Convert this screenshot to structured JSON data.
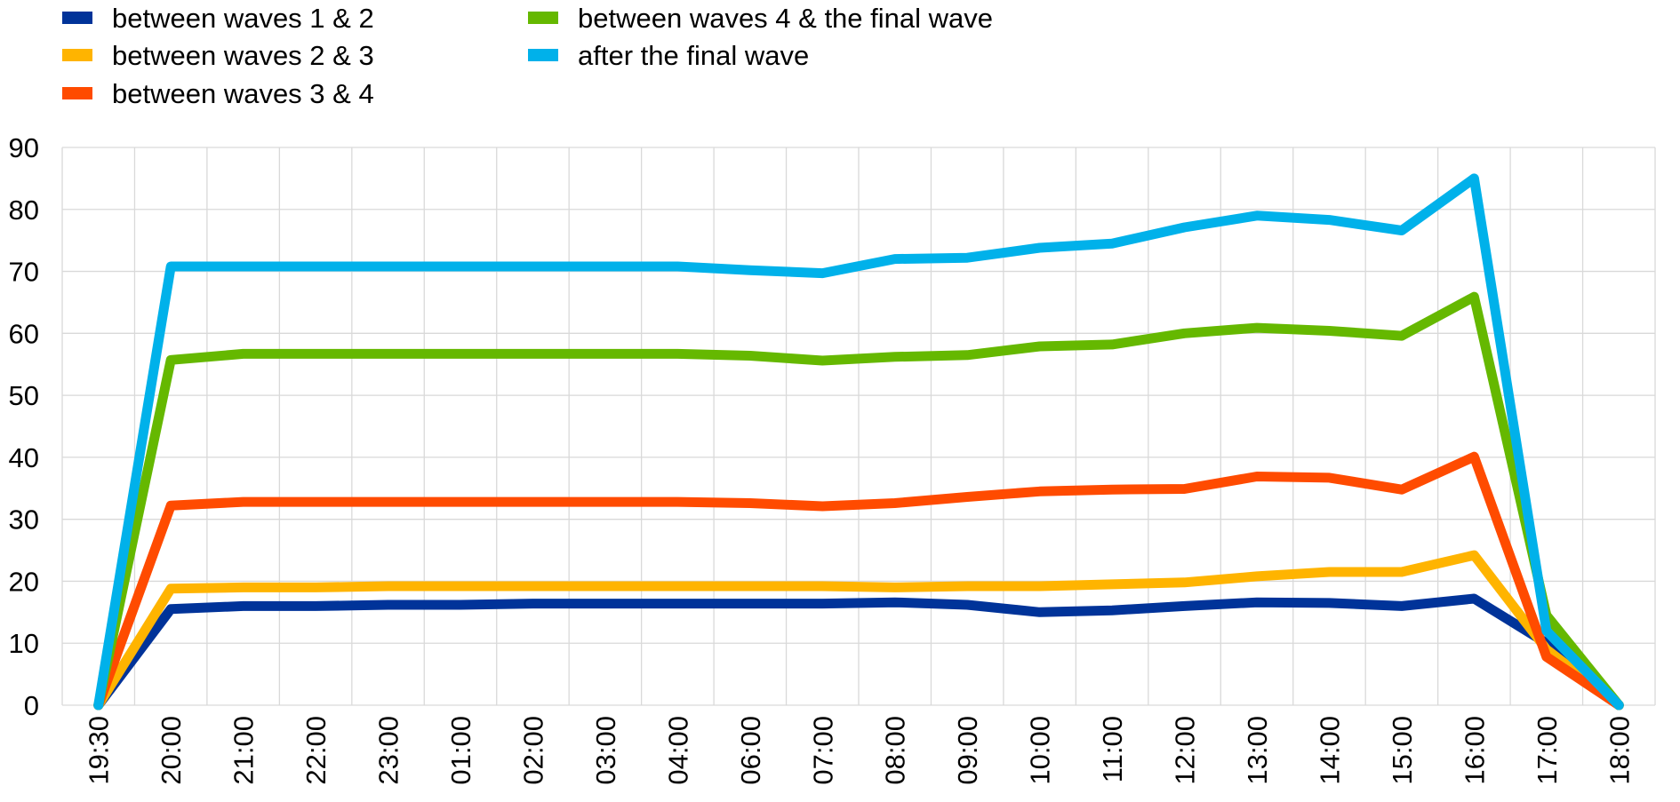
{
  "chart_data": {
    "type": "line",
    "title": "",
    "xlabel": "",
    "ylabel": "",
    "ylim": [
      0,
      90
    ],
    "yticks": [
      0,
      10,
      20,
      30,
      40,
      50,
      60,
      70,
      80,
      90
    ],
    "grid": true,
    "legend_position": "top-left",
    "categories": [
      "19:30",
      "20:00",
      "21:00",
      "22:00",
      "23:00",
      "01:00",
      "02:00",
      "03:00",
      "04:00",
      "06:00",
      "07:00",
      "08:00",
      "09:00",
      "10:00",
      "11:00",
      "12:00",
      "13:00",
      "14:00",
      "15:00",
      "16:00",
      "17:00",
      "18:00"
    ],
    "series": [
      {
        "name": "between waves 1 & 2",
        "color": "#003399",
        "values": [
          0,
          15.5,
          16,
          16,
          16.2,
          16.2,
          16.4,
          16.4,
          16.4,
          16.4,
          16.4,
          16.6,
          16.2,
          15,
          15.3,
          16,
          16.6,
          16.5,
          16,
          17.2,
          10,
          0
        ]
      },
      {
        "name": "between waves 2 & 3",
        "color": "#ffb400",
        "values": [
          0,
          18.8,
          19,
          19,
          19.2,
          19.2,
          19.2,
          19.2,
          19.2,
          19.2,
          19.2,
          19,
          19.2,
          19.2,
          19.5,
          19.8,
          20.8,
          21.5,
          21.5,
          24.2,
          9,
          0
        ]
      },
      {
        "name": "between waves 3 & 4",
        "color": "#ff4b00",
        "values": [
          0,
          32.2,
          32.8,
          32.8,
          32.8,
          32.8,
          32.8,
          32.8,
          32.8,
          32.6,
          32.1,
          32.6,
          33.6,
          34.5,
          34.8,
          34.9,
          36.9,
          36.7,
          34.8,
          40.1,
          7.8,
          0
        ]
      },
      {
        "name": "between waves 4 & the final wave",
        "color": "#65b800",
        "values": [
          0,
          55.7,
          56.7,
          56.7,
          56.7,
          56.7,
          56.7,
          56.7,
          56.7,
          56.4,
          55.6,
          56.2,
          56.5,
          57.9,
          58.2,
          60,
          60.9,
          60.4,
          59.6,
          65.9,
          14.5,
          0
        ]
      },
      {
        "name": "after the final wave",
        "color": "#00b1ea",
        "values": [
          0,
          70.8,
          70.8,
          70.8,
          70.8,
          70.8,
          70.8,
          70.8,
          70.8,
          70.2,
          69.7,
          72,
          72.2,
          73.8,
          74.5,
          77.1,
          79,
          78.3,
          76.6,
          85,
          12,
          0
        ]
      }
    ]
  }
}
